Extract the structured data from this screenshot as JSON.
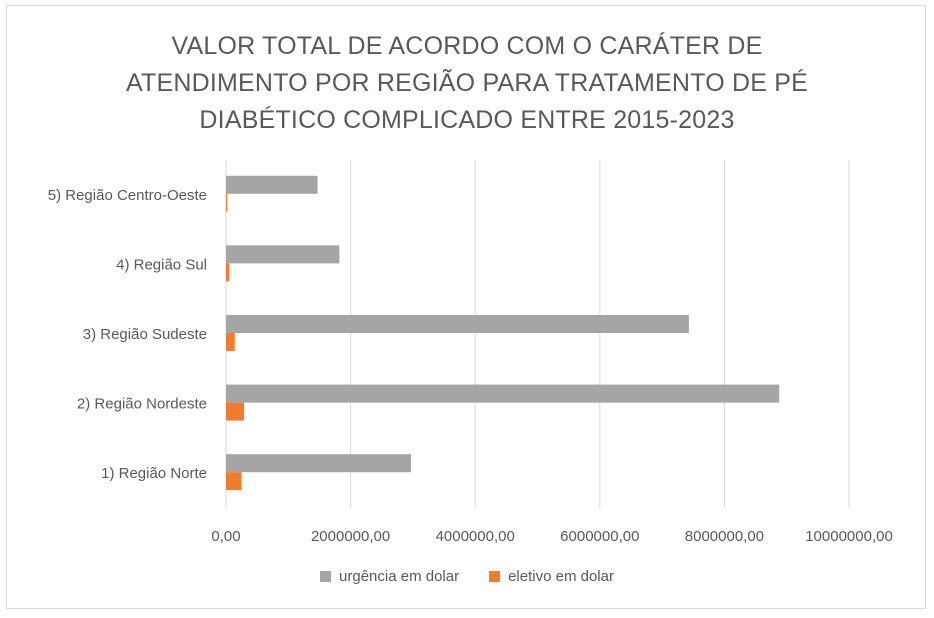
{
  "chart_data": {
    "type": "bar",
    "orientation": "horizontal",
    "title_lines": [
      "VALOR TOTAL DE ACORDO COM O CARÁTER DE",
      "ATENDIMENTO POR REGIÃO PARA TRATAMENTO DE PÉ",
      "DIABÉTICO COMPLICADO ENTRE 2015-2023"
    ],
    "categories": [
      "1) Região Norte",
      "2) Região Nordeste",
      "3) Região Sudeste",
      "4) Região Sul",
      "5) Região Centro-Oeste"
    ],
    "series": [
      {
        "name": "urgência em dolar",
        "color": "#a5a5a5",
        "values": [
          2970000,
          8880000,
          7430000,
          1820000,
          1470000
        ]
      },
      {
        "name": "eletivo em dolar",
        "color": "#ed7d31",
        "values": [
          250000,
          290000,
          140000,
          50000,
          20000
        ]
      }
    ],
    "xlim": [
      0,
      10000000
    ],
    "xticks": [
      0,
      2000000,
      4000000,
      6000000,
      8000000,
      10000000
    ],
    "xtick_labels": [
      "0,00",
      "2000000,00",
      "4000000,00",
      "6000000,00",
      "8000000,00",
      "10000000,00"
    ],
    "grid": true,
    "legend_position": "bottom"
  }
}
